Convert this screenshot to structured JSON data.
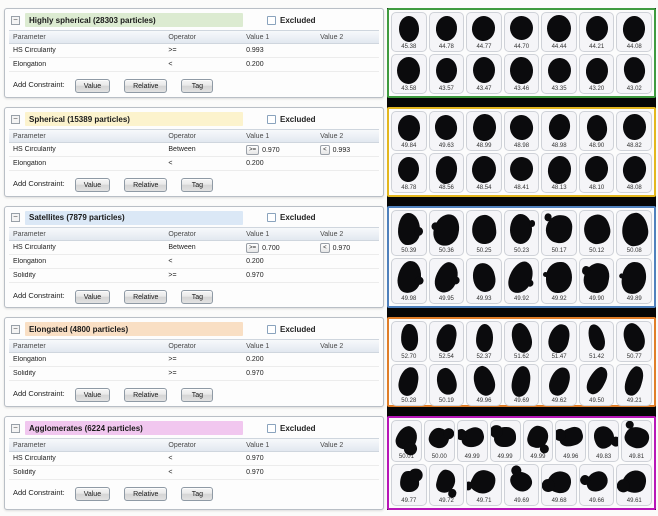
{
  "shared": {
    "excluded_label": "Excluded",
    "columns": [
      "Parameter",
      "Operator",
      "Value 1",
      "Value 2"
    ],
    "add_constraint_label": "Add Constraint:",
    "buttons": [
      "Value",
      "Relative",
      "Tag"
    ]
  },
  "panels": [
    {
      "title": "Highly spherical (28303 particles)",
      "header_color": "#dcebd1",
      "border_color": "#3f9b3f",
      "blob_style": "sphere",
      "rows": [
        {
          "parameter": "HS Circularity",
          "operator": ">=",
          "value1": "0.993",
          "value2": ""
        },
        {
          "parameter": "Elongation",
          "operator": "<",
          "value1": "0.200",
          "value2": ""
        }
      ],
      "particle_rows": [
        [
          "45.38",
          "44.78",
          "44.77",
          "44.70",
          "44.44",
          "44.21",
          "44.08"
        ],
        [
          "43.58",
          "43.57",
          "43.47",
          "43.46",
          "43.35",
          "43.20",
          "43.02"
        ]
      ]
    },
    {
      "title": "Spherical (15389 particles)",
      "header_color": "#fcf3cd",
      "border_color": "#e3b71e",
      "blob_style": "sphere",
      "rows": [
        {
          "parameter": "HS Circularity",
          "operator": "Between",
          "value1_op": ">=",
          "value1": "0.970",
          "value2_op": "<",
          "value2": "0.993"
        },
        {
          "parameter": "Elongation",
          "operator": "<",
          "value1": "0.200",
          "value2": ""
        }
      ],
      "particle_rows": [
        [
          "49.84",
          "49.63",
          "48.99",
          "48.98",
          "48.98",
          "48.90",
          "48.82"
        ],
        [
          "48.78",
          "48.56",
          "48.54",
          "48.41",
          "48.13",
          "48.10",
          "48.08"
        ]
      ]
    },
    {
      "title": "Satellites (7879 particles)",
      "header_color": "#dbe8f6",
      "border_color": "#4f81bd",
      "blob_style": "satellite",
      "rows": [
        {
          "parameter": "HS Circularity",
          "operator": "Between",
          "value1_op": ">=",
          "value1": "0.700",
          "value2_op": "<",
          "value2": "0.970"
        },
        {
          "parameter": "Elongation",
          "operator": "<",
          "value1": "0.200",
          "value2": ""
        },
        {
          "parameter": "Solidity",
          "operator": ">=",
          "value1": "0.970",
          "value2": ""
        }
      ],
      "particle_rows": [
        [
          "50.39",
          "50.36",
          "50.25",
          "50.23",
          "50.17",
          "50.12",
          "50.08"
        ],
        [
          "49.98",
          "49.95",
          "49.93",
          "49.92",
          "49.92",
          "49.90",
          "49.89"
        ]
      ]
    },
    {
      "title": "Elongated (4800 particles)",
      "header_color": "#f9dfc4",
      "border_color": "#e07e28",
      "blob_style": "elongated",
      "rows": [
        {
          "parameter": "Elongation",
          "operator": ">=",
          "value1": "0.200",
          "value2": ""
        },
        {
          "parameter": "Solidity",
          "operator": ">=",
          "value1": "0.970",
          "value2": ""
        }
      ],
      "particle_rows": [
        [
          "52.70",
          "52.54",
          "52.37",
          "51.62",
          "51.47",
          "51.42",
          "50.77"
        ],
        [
          "50.28",
          "50.19",
          "49.96",
          "49.69",
          "49.62",
          "49.50",
          "49.21"
        ]
      ]
    },
    {
      "title": "Agglomerates (6224 particles)",
      "header_color": "#f1c7ef",
      "border_color": "#b817b8",
      "blob_style": "agglomerate",
      "rows": [
        {
          "parameter": "HS Circularity",
          "operator": "<",
          "value1": "0.970",
          "value2": ""
        },
        {
          "parameter": "Solidity",
          "operator": "<",
          "value1": "0.970",
          "value2": ""
        }
      ],
      "particle_rows": [
        [
          "50.01",
          "50.00",
          "49.99",
          "49.99",
          "49.99",
          "49.96",
          "49.83",
          "49.81"
        ],
        [
          "49.77",
          "49.72",
          "49.71",
          "49.69",
          "49.68",
          "49.66",
          "49.61"
        ]
      ]
    }
  ]
}
